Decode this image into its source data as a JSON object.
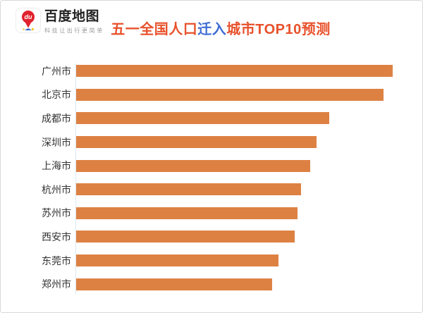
{
  "header": {
    "brand": "百度地图",
    "tagline": "科技让出行更简单",
    "logo_pin_text": "du",
    "title_part1": "五一全国人口",
    "title_part2": "迁入",
    "title_part3": "城市TOP10预测",
    "title_color_main": "#e8512b",
    "title_color_highlight": "#3f6cd5",
    "brand_pin_color": "#e0232e"
  },
  "chart_data": {
    "type": "bar",
    "orientation": "horizontal",
    "title": "五一全国人口迁入城市TOP10预测",
    "categories": [
      "广州市",
      "北京市",
      "成都市",
      "深圳市",
      "上海市",
      "杭州市",
      "苏州市",
      "西安市",
      "东莞市",
      "郑州市"
    ],
    "values": [
      100,
      97,
      80,
      76,
      74,
      71,
      70,
      69,
      64,
      62
    ],
    "unit": "relative length, max = 100 (no numeric labels shown in chart)",
    "value_labels_shown": false,
    "bar_color": "#dd8143",
    "axis_line_color": "#dbe8f2",
    "label_color": "#333333",
    "xlim": [
      0,
      100
    ],
    "grid": false,
    "legend": false
  }
}
